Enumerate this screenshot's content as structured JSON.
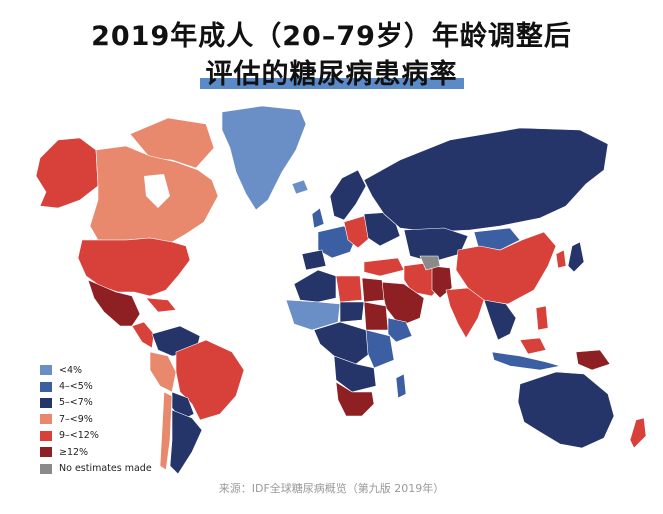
{
  "title": {
    "line1": "2019年成人（20–79岁）年龄调整后",
    "line2": "评估的糖尿病患病率"
  },
  "legend": [
    {
      "label": "<4%",
      "color": "#6a8fc7"
    },
    {
      "label": "4–<5%",
      "color": "#3c5fa3"
    },
    {
      "label": "5–<7%",
      "color": "#25356a"
    },
    {
      "label": "7–<9%",
      "color": "#e8886c"
    },
    {
      "label": "9–<12%",
      "color": "#d8403a"
    },
    {
      "label": "≥12%",
      "color": "#8e1f23"
    },
    {
      "label": "No estimates made",
      "color": "#8a8a8a"
    }
  ],
  "source": "来源：IDF全球糖尿病概览（第九版 2019年）"
}
